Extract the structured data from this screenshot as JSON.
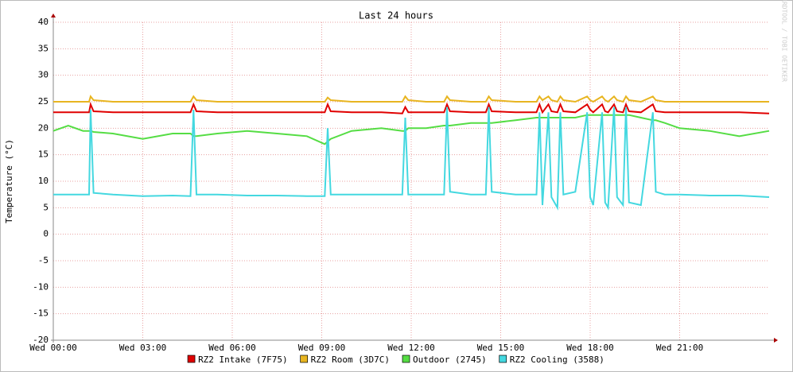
{
  "chart_data": {
    "type": "line",
    "title": "Last 24 hours",
    "y_label": "Temperature (°C)",
    "watermark": "RRDTOOL / TOBI OETIKER",
    "x": [
      0,
      0.5,
      1,
      1.2,
      1.25,
      1.35,
      2,
      3,
      4,
      4.6,
      4.7,
      4.8,
      5.5,
      6.5,
      7.5,
      8.5,
      9.1,
      9.2,
      9.3,
      10,
      11,
      11.7,
      11.8,
      11.9,
      12.5,
      13.1,
      13.2,
      13.3,
      14,
      14.5,
      14.6,
      14.7,
      15.5,
      16.2,
      16.3,
      16.4,
      16.6,
      16.7,
      16.9,
      17.0,
      17.1,
      17.5,
      17.9,
      18.0,
      18.1,
      18.4,
      18.5,
      18.6,
      18.8,
      18.9,
      19.1,
      19.2,
      19.3,
      19.7,
      20.1,
      20.2,
      20.5,
      21,
      22,
      23,
      24
    ],
    "xlim": [
      0,
      24
    ],
    "xticks": [
      {
        "value": 0,
        "label": "Wed 00:00"
      },
      {
        "value": 3,
        "label": "Wed 03:00"
      },
      {
        "value": 6,
        "label": "Wed 06:00"
      },
      {
        "value": 9,
        "label": "Wed 09:00"
      },
      {
        "value": 12,
        "label": "Wed 12:00"
      },
      {
        "value": 15,
        "label": "Wed 15:00"
      },
      {
        "value": 18,
        "label": "Wed 18:00"
      },
      {
        "value": 21,
        "label": "Wed 21:00"
      }
    ],
    "ylim": [
      -20,
      40
    ],
    "yticks": [
      -20,
      -15,
      -10,
      -5,
      0,
      5,
      10,
      15,
      20,
      25,
      30,
      35,
      40
    ],
    "grid": true,
    "series": [
      {
        "name": "RZ2 Intake (7F75)",
        "color": "#e00000",
        "values": [
          23,
          23,
          23,
          23,
          24.5,
          23.2,
          23,
          23,
          23,
          23,
          24.5,
          23.2,
          23,
          23,
          23,
          23,
          23,
          24.5,
          23.2,
          23,
          23,
          22.8,
          24,
          23,
          23,
          23,
          24.5,
          23.2,
          23,
          23,
          24.5,
          23.2,
          23,
          23,
          24.5,
          23,
          24.5,
          23.2,
          23,
          24.5,
          23.2,
          23,
          24.5,
          23.5,
          23,
          24.5,
          23.2,
          23,
          24.5,
          23.2,
          23,
          24.5,
          23.2,
          23,
          24.5,
          23.2,
          23,
          23,
          23,
          23,
          22.8
        ]
      },
      {
        "name": "RZ2 Room (3D7C)",
        "color": "#e8b520",
        "values": [
          25,
          25,
          25,
          25,
          26,
          25.3,
          25,
          25,
          25,
          25,
          26,
          25.3,
          25,
          25,
          25,
          25,
          25,
          25.8,
          25.3,
          25,
          25,
          25,
          26,
          25.3,
          25,
          25,
          26,
          25.3,
          25,
          25,
          26,
          25.3,
          25,
          25,
          26,
          25.3,
          26,
          25.3,
          25,
          26,
          25.3,
          25,
          26,
          25.3,
          25,
          26,
          25.3,
          25,
          26,
          25.3,
          25,
          26,
          25.3,
          25,
          26,
          25.3,
          25,
          25,
          25,
          25,
          25
        ]
      },
      {
        "name": "Outdoor (2745)",
        "color": "#55dd44",
        "values": [
          19.5,
          20.5,
          19.5,
          19.5,
          19.5,
          19.3,
          19,
          18,
          19,
          19,
          18.5,
          18.5,
          19,
          19.5,
          19,
          18.5,
          17,
          17.5,
          18,
          19.5,
          20,
          19.5,
          19.5,
          20,
          20,
          20.5,
          20.5,
          20.5,
          21,
          21,
          21,
          21,
          21.5,
          22,
          22,
          22,
          22,
          22,
          22,
          22,
          22,
          22,
          22.5,
          22.5,
          22.5,
          22.5,
          22.5,
          22.5,
          22.5,
          22.5,
          22.5,
          22.5,
          22.5,
          22,
          21.5,
          21.5,
          21,
          20,
          19.5,
          18.5,
          19.5
        ]
      },
      {
        "name": "RZ2 Cooling (3588)",
        "color": "#44d8e0",
        "values": [
          7.5,
          7.5,
          7.5,
          7.5,
          23.5,
          7.8,
          7.5,
          7.2,
          7.3,
          7.2,
          23.5,
          7.5,
          7.5,
          7.3,
          7.3,
          7.2,
          7.2,
          20,
          7.5,
          7.5,
          7.5,
          7.5,
          22,
          7.5,
          7.5,
          7.5,
          24,
          8,
          7.5,
          7.5,
          24,
          8,
          7.5,
          7.5,
          23,
          5.5,
          23,
          7,
          5,
          23,
          7.5,
          8,
          23,
          7,
          5.5,
          23,
          6,
          5,
          24,
          7,
          5.5,
          24,
          6,
          5.5,
          23,
          8,
          7.5,
          7.5,
          7.3,
          7.3,
          7
        ]
      }
    ]
  }
}
